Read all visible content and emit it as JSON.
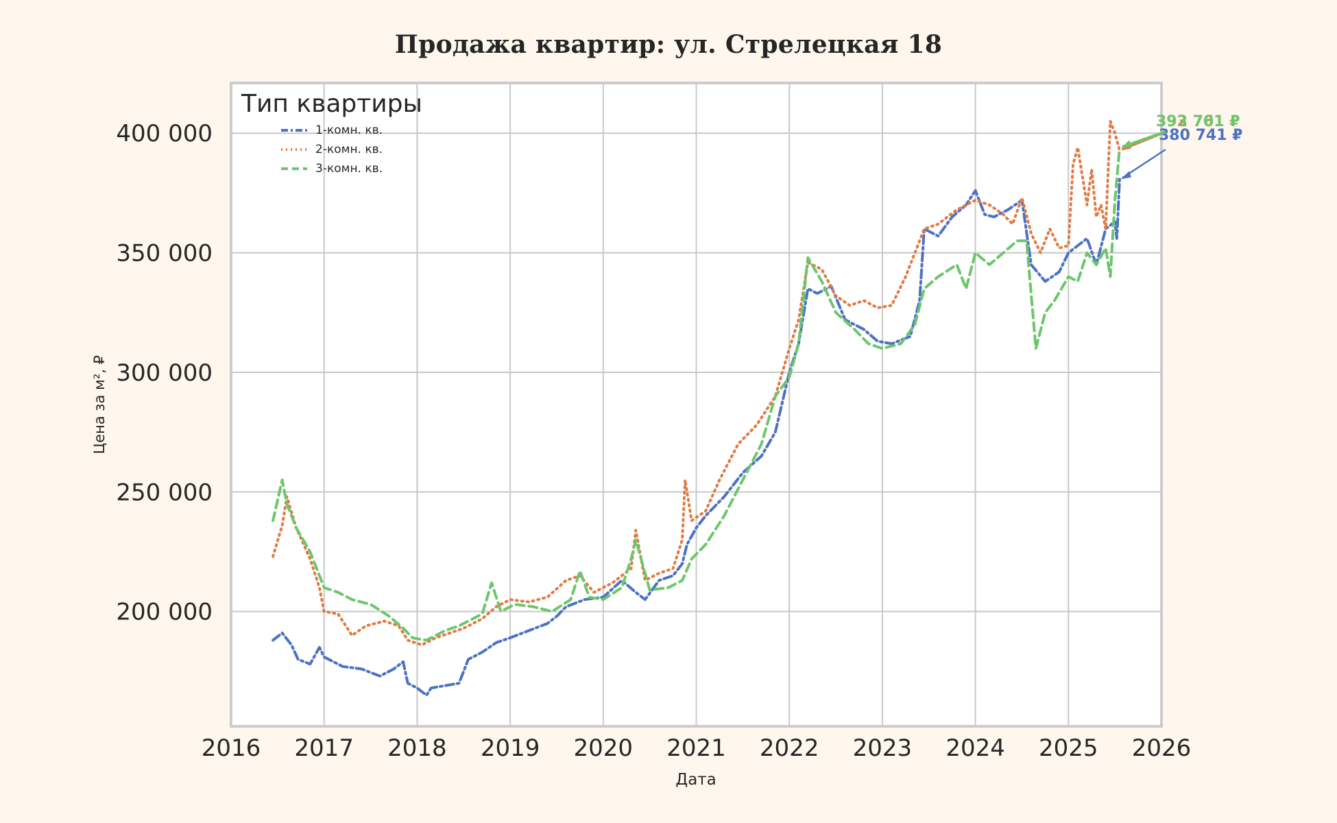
{
  "chart_data": {
    "type": "line",
    "title": "Продажа квартир: ул. Стрелецкая 18",
    "xlabel": "Дата",
    "ylabel": "Цена за м², ₽",
    "xlim": [
      2016,
      2026
    ],
    "ylim": [
      152000,
      421000
    ],
    "x_ticks": [
      "2016",
      "2017",
      "2018",
      "2019",
      "2020",
      "2021",
      "2022",
      "2023",
      "2024",
      "2025",
      "2026"
    ],
    "y_ticks": [
      {
        "value": 200000,
        "label": "200 000"
      },
      {
        "value": 250000,
        "label": "250 000"
      },
      {
        "value": 300000,
        "label": "300 000"
      },
      {
        "value": 350000,
        "label": "350 000"
      },
      {
        "value": 400000,
        "label": "400 000"
      }
    ],
    "grid": true,
    "legend": {
      "title": "Тип квартиры",
      "position": "top-left"
    },
    "series": [
      {
        "name": "1-комн. кв.",
        "color": "#4c72c4",
        "style": "dashdot",
        "end_label": "380 741 ₽",
        "x": [
          2016.45,
          2016.55,
          2016.65,
          2016.72,
          2016.85,
          2016.95,
          2017.0,
          2017.2,
          2017.4,
          2017.6,
          2017.75,
          2017.85,
          2017.9,
          2018.0,
          2018.1,
          2018.15,
          2018.3,
          2018.45,
          2018.55,
          2018.7,
          2018.85,
          2019.0,
          2019.2,
          2019.4,
          2019.5,
          2019.6,
          2019.8,
          2020.0,
          2020.2,
          2020.35,
          2020.45,
          2020.6,
          2020.75,
          2020.85,
          2020.9,
          2021.0,
          2021.1,
          2021.3,
          2021.5,
          2021.7,
          2021.85,
          2022.0,
          2022.1,
          2022.2,
          2022.3,
          2022.45,
          2022.6,
          2022.8,
          2022.95,
          2023.1,
          2023.3,
          2023.4,
          2023.45,
          2023.6,
          2023.75,
          2023.9,
          2024.0,
          2024.1,
          2024.2,
          2024.35,
          2024.5,
          2024.6,
          2024.75,
          2024.9,
          2025.0,
          2025.1,
          2025.2,
          2025.3,
          2025.4,
          2025.5,
          2025.52,
          2025.55
        ],
        "values": [
          188000,
          191000,
          186000,
          180000,
          178000,
          185000,
          181000,
          177000,
          176000,
          173000,
          176000,
          179000,
          170000,
          168000,
          165000,
          168000,
          169000,
          170000,
          180000,
          183000,
          187000,
          189000,
          192000,
          195000,
          198000,
          202000,
          205000,
          206000,
          213000,
          208000,
          205000,
          213000,
          215000,
          220000,
          228000,
          235000,
          240000,
          248000,
          258000,
          265000,
          275000,
          300000,
          312000,
          335000,
          333000,
          336000,
          322000,
          318000,
          313000,
          312000,
          315000,
          330000,
          360000,
          357000,
          365000,
          370000,
          376000,
          366000,
          365000,
          368000,
          372000,
          345000,
          338000,
          342000,
          350000,
          353000,
          356000,
          345000,
          360000,
          363000,
          356000,
          380741
        ]
      },
      {
        "name": "2-комн. кв.",
        "color": "#e07b45",
        "style": "dotted",
        "end_label": "392 761 ₽",
        "x": [
          2016.45,
          2016.55,
          2016.6,
          2016.7,
          2016.85,
          2016.95,
          2017.0,
          2017.15,
          2017.3,
          2017.45,
          2017.65,
          2017.8,
          2017.9,
          2018.05,
          2018.2,
          2018.35,
          2018.5,
          2018.7,
          2018.85,
          2019.0,
          2019.2,
          2019.4,
          2019.6,
          2019.75,
          2019.9,
          2020.1,
          2020.3,
          2020.35,
          2020.45,
          2020.6,
          2020.75,
          2020.85,
          2020.88,
          2020.95,
          2021.1,
          2021.25,
          2021.45,
          2021.65,
          2021.85,
          2022.0,
          2022.1,
          2022.2,
          2022.35,
          2022.5,
          2022.65,
          2022.8,
          2022.95,
          2023.1,
          2023.25,
          2023.35,
          2023.45,
          2023.6,
          2023.8,
          2024.0,
          2024.15,
          2024.3,
          2024.4,
          2024.5,
          2024.6,
          2024.7,
          2024.8,
          2024.9,
          2025.0,
          2025.05,
          2025.1,
          2025.2,
          2025.25,
          2025.3,
          2025.35,
          2025.4,
          2025.45,
          2025.5,
          2025.55
        ],
        "values": [
          223000,
          236000,
          248000,
          235000,
          222000,
          210000,
          200000,
          199000,
          190000,
          194000,
          196000,
          194000,
          188000,
          186000,
          189000,
          191000,
          193000,
          197000,
          202000,
          205000,
          204000,
          206000,
          213000,
          215000,
          208000,
          212000,
          218000,
          234000,
          213000,
          216000,
          218000,
          230000,
          255000,
          238000,
          242000,
          255000,
          270000,
          278000,
          290000,
          310000,
          322000,
          346000,
          343000,
          332000,
          328000,
          330000,
          327000,
          328000,
          340000,
          350000,
          360000,
          362000,
          368000,
          372000,
          370000,
          366000,
          362000,
          373000,
          358000,
          350000,
          360000,
          352000,
          353000,
          387000,
          394000,
          370000,
          385000,
          365000,
          370000,
          360000,
          405000,
          400000,
          392761
        ]
      },
      {
        "name": "3-комн. кв.",
        "color": "#6cc66c",
        "style": "dashed",
        "end_label": "393 701 ₽",
        "x": [
          2016.45,
          2016.55,
          2016.6,
          2016.7,
          2016.85,
          2016.95,
          2017.0,
          2017.15,
          2017.3,
          2017.5,
          2017.7,
          2017.85,
          2017.95,
          2018.1,
          2018.3,
          2018.45,
          2018.55,
          2018.7,
          2018.8,
          2018.9,
          2019.05,
          2019.25,
          2019.45,
          2019.65,
          2019.75,
          2019.85,
          2020.0,
          2020.2,
          2020.3,
          2020.35,
          2020.5,
          2020.7,
          2020.85,
          2020.95,
          2021.1,
          2021.3,
          2021.5,
          2021.7,
          2021.85,
          2022.0,
          2022.1,
          2022.2,
          2022.35,
          2022.5,
          2022.7,
          2022.85,
          2023.0,
          2023.2,
          2023.35,
          2023.45,
          2023.6,
          2023.8,
          2023.9,
          2024.0,
          2024.15,
          2024.3,
          2024.45,
          2024.55,
          2024.65,
          2024.75,
          2024.85,
          2025.0,
          2025.1,
          2025.2,
          2025.3,
          2025.4,
          2025.45,
          2025.5,
          2025.55
        ],
        "values": [
          238000,
          255000,
          245000,
          235000,
          225000,
          215000,
          210000,
          208000,
          205000,
          203000,
          198000,
          193000,
          189000,
          188000,
          192000,
          194000,
          196000,
          199000,
          212000,
          200000,
          203000,
          202000,
          200000,
          205000,
          217000,
          206000,
          205000,
          210000,
          222000,
          230000,
          209000,
          210000,
          213000,
          222000,
          228000,
          240000,
          255000,
          270000,
          290000,
          298000,
          312000,
          348000,
          338000,
          325000,
          318000,
          312000,
          310000,
          312000,
          320000,
          335000,
          340000,
          345000,
          335000,
          350000,
          345000,
          350000,
          355000,
          355000,
          310000,
          325000,
          330000,
          340000,
          338000,
          350000,
          345000,
          352000,
          340000,
          372000,
          393701
        ]
      }
    ]
  }
}
